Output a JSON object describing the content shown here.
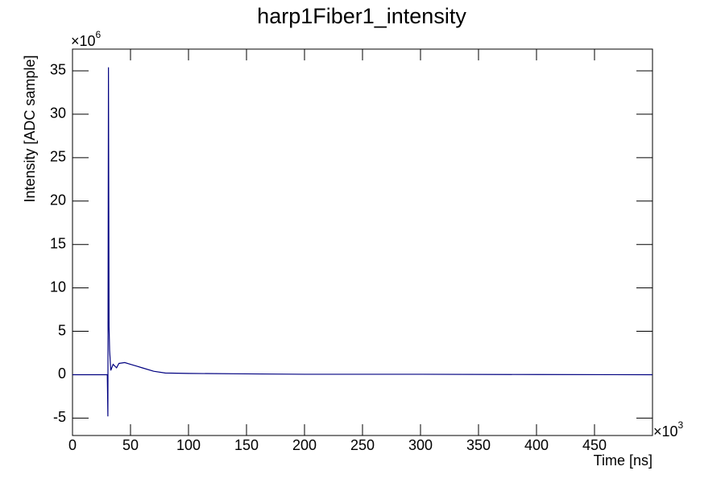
{
  "chart_data": {
    "type": "line",
    "title": "harp1Fiber1_intensity",
    "x_label": "Time [ns]",
    "y_label": "Intensity [ADC sample]",
    "x_multiplier": {
      "base": "×10",
      "exponent": "3"
    },
    "y_multiplier": {
      "base": "×10",
      "exponent": "6"
    },
    "color": "#000080",
    "x": [
      0,
      30,
      30.5,
      31,
      31.5,
      32,
      33,
      35,
      38,
      40,
      45,
      50,
      55,
      60,
      70,
      80,
      100,
      150,
      200,
      300,
      400,
      500
    ],
    "values": [
      0,
      0,
      -4.8,
      35.4,
      5.5,
      2.8,
      0.5,
      1.2,
      0.8,
      1.3,
      1.4,
      1.2,
      1.0,
      0.8,
      0.4,
      0.2,
      0.15,
      0.1,
      0.05,
      0.05,
      0.02,
      0
    ],
    "xlim": [
      0,
      500
    ],
    "ylim": [
      -7,
      37.5
    ],
    "xticks": [
      0,
      50,
      100,
      150,
      200,
      250,
      300,
      350,
      400,
      450
    ],
    "yticks": [
      -5,
      0,
      5,
      10,
      15,
      20,
      25,
      30,
      35
    ]
  }
}
